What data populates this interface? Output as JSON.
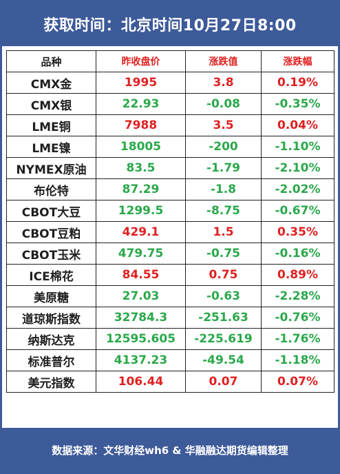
{
  "header": {
    "title": "获取时间：北京时间10月27日8:00"
  },
  "table": {
    "columns": [
      "品种",
      "昨收盘价",
      "涨跌值",
      "涨跌幅"
    ],
    "rows": [
      {
        "name": "CMX金",
        "close": "1995",
        "change": "3.8",
        "pct": "0.19%",
        "dir": "up"
      },
      {
        "name": "CMX银",
        "close": "22.93",
        "change": "-0.08",
        "pct": "-0.35%",
        "dir": "down"
      },
      {
        "name": "LME铜",
        "close": "7988",
        "change": "3.5",
        "pct": "0.04%",
        "dir": "up"
      },
      {
        "name": "LME镍",
        "close": "18005",
        "change": "-200",
        "pct": "-1.10%",
        "dir": "down"
      },
      {
        "name": "NYMEX原油",
        "close": "83.5",
        "change": "-1.79",
        "pct": "-2.10%",
        "dir": "down"
      },
      {
        "name": "布伦特",
        "close": "87.29",
        "change": "-1.8",
        "pct": "-2.02%",
        "dir": "down"
      },
      {
        "name": "CBOT大豆",
        "close": "1299.5",
        "change": "-8.75",
        "pct": "-0.67%",
        "dir": "down"
      },
      {
        "name": "CBOT豆粕",
        "close": "429.1",
        "change": "1.5",
        "pct": "0.35%",
        "dir": "up"
      },
      {
        "name": "CBOT玉米",
        "close": "479.75",
        "change": "-0.75",
        "pct": "-0.16%",
        "dir": "down"
      },
      {
        "name": "ICE棉花",
        "close": "84.55",
        "change": "0.75",
        "pct": "0.89%",
        "dir": "up"
      },
      {
        "name": "美原糖",
        "close": "27.03",
        "change": "-0.63",
        "pct": "-2.28%",
        "dir": "down"
      },
      {
        "name": "道琼斯指数",
        "close": "32784.3",
        "change": "-251.63",
        "pct": "-0.76%",
        "dir": "down"
      },
      {
        "name": "纳斯达克",
        "close": "12595.605",
        "change": "-225.619",
        "pct": "-1.76%",
        "dir": "down"
      },
      {
        "name": "标准普尔",
        "close": "4137.23",
        "change": "-49.54",
        "pct": "-1.18%",
        "dir": "down"
      },
      {
        "name": "美元指数",
        "close": "106.44",
        "change": "0.07",
        "pct": "0.07%",
        "dir": "up"
      }
    ]
  },
  "footer": {
    "source": "数据来源：文华财经wh6 & 华融融达期货编辑整理"
  },
  "colors": {
    "frame": "#3d5a99",
    "up": "#e02020",
    "down": "#2aa84a"
  }
}
